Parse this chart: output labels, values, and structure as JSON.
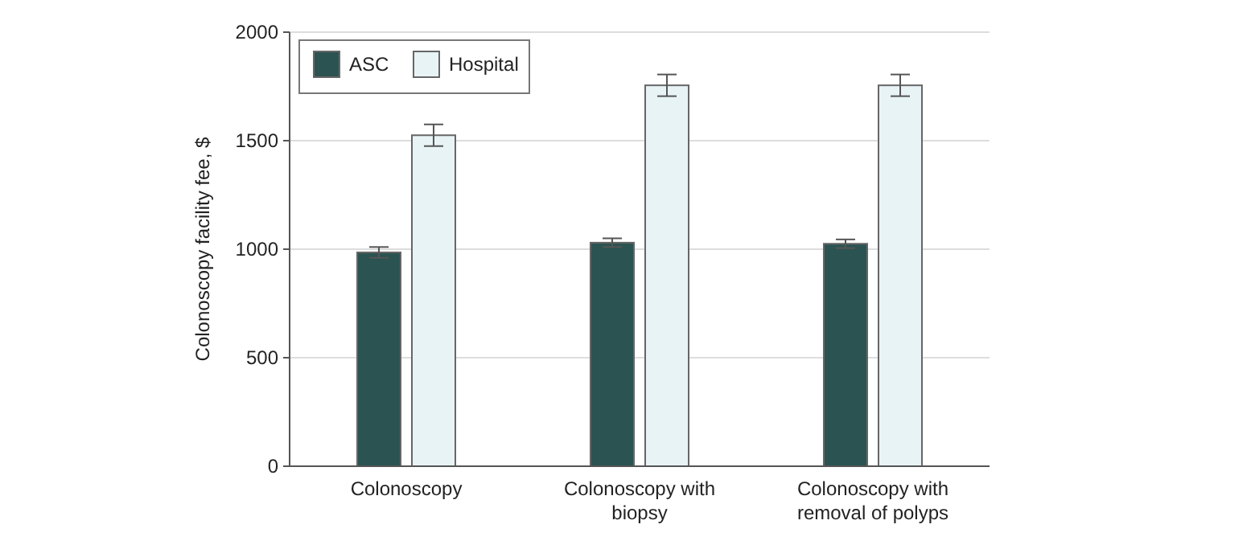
{
  "chart_data": {
    "type": "bar",
    "ylabel": "Colonoscopy facility fee, $",
    "categories": [
      "Colonoscopy",
      "Colonoscopy with biopsy",
      "Colonoscopy with removal of polyps"
    ],
    "series": [
      {
        "name": "ASC",
        "color": "#2b5351",
        "values": [
          985,
          1030,
          1025
        ],
        "errors": [
          25,
          20,
          20
        ]
      },
      {
        "name": "Hospital",
        "color": "#e8f3f5",
        "values": [
          1525,
          1755,
          1755
        ],
        "errors": [
          50,
          50,
          50
        ]
      }
    ],
    "ylim": [
      0,
      2000
    ],
    "yticks": [
      0,
      500,
      1000,
      1500,
      2000
    ],
    "grid": "y",
    "legend": "top left"
  }
}
